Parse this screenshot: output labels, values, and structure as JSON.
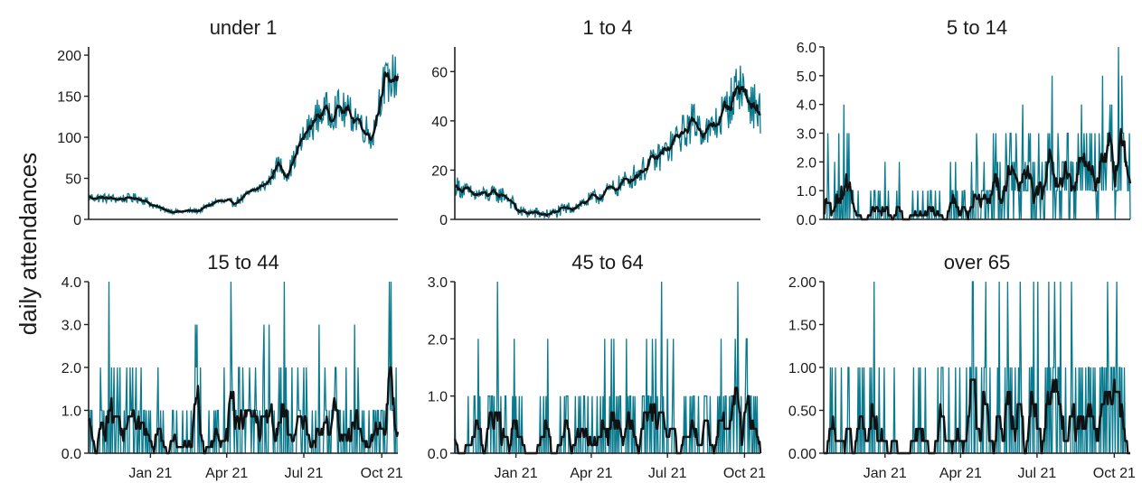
{
  "figure": {
    "ylabel": "daily attendances",
    "colors": {
      "daily": "#0a7a8f",
      "smooth": "#111111",
      "axis": "#222222"
    }
  },
  "chart_data": [
    {
      "type": "line",
      "title": "under 1",
      "x_range": [
        "2020-10-20",
        "2021-10-20"
      ],
      "ylim": [
        0,
        210
      ],
      "yticks": [
        0,
        50,
        100,
        150,
        200
      ],
      "ytick_labels": [
        "0",
        "50",
        "100",
        "150",
        "200"
      ],
      "xticks": [],
      "xtick_labels": [],
      "series": [
        {
          "values_approx": [
            [
              "2020-10-20",
              27
            ],
            [
              "2020-11-20",
              25
            ],
            [
              "2020-12-20",
              26
            ],
            [
              "2021-01-10",
              14
            ],
            [
              "2021-02-01",
              9
            ],
            [
              "2021-03-01",
              11
            ],
            [
              "2021-03-20",
              22
            ],
            [
              "2021-04-10",
              20
            ],
            [
              "2021-05-01",
              33
            ],
            [
              "2021-05-20",
              45
            ],
            [
              "2021-06-01",
              68
            ],
            [
              "2021-06-12",
              55
            ],
            [
              "2021-07-01",
              100
            ],
            [
              "2021-07-20",
              130
            ],
            [
              "2021-08-10",
              135
            ],
            [
              "2021-09-01",
              125
            ],
            [
              "2021-09-20",
              100
            ],
            [
              "2021-10-01",
              160
            ],
            [
              "2021-10-20",
              178
            ]
          ]
        }
      ]
    },
    {
      "type": "line",
      "title": "1 to 4",
      "x_range": [
        "2020-10-20",
        "2021-10-20"
      ],
      "ylim": [
        0,
        70
      ],
      "yticks": [
        0,
        20,
        40,
        60
      ],
      "ytick_labels": [
        "0",
        "20",
        "40",
        "60"
      ],
      "xticks": [],
      "xtick_labels": [],
      "series": [
        {
          "values_approx": [
            [
              "2020-10-20",
              14
            ],
            [
              "2020-11-10",
              10
            ],
            [
              "2020-12-20",
              10
            ],
            [
              "2021-01-05",
              3
            ],
            [
              "2021-02-10",
              2
            ],
            [
              "2021-03-01",
              4
            ],
            [
              "2021-04-01",
              8
            ],
            [
              "2021-05-01",
              13
            ],
            [
              "2021-06-01",
              20
            ],
            [
              "2021-07-01",
              28
            ],
            [
              "2021-08-01",
              40
            ],
            [
              "2021-08-20",
              35
            ],
            [
              "2021-09-10",
              45
            ],
            [
              "2021-09-25",
              55
            ],
            [
              "2021-10-10",
              47
            ],
            [
              "2021-10-20",
              43
            ]
          ]
        }
      ]
    },
    {
      "type": "line",
      "title": "5 to 14",
      "x_range": [
        "2020-10-20",
        "2021-10-20"
      ],
      "ylim": [
        0,
        6
      ],
      "yticks": [
        0,
        1,
        2,
        3,
        4,
        5,
        6
      ],
      "ytick_labels": [
        "0.0",
        "1.0",
        "2.0",
        "3.0",
        "4.0",
        "5.0",
        "6.0"
      ],
      "xticks": [],
      "xtick_labels": [],
      "series": [
        {
          "values_approx": [
            [
              "2020-10-20",
              0.3
            ],
            [
              "2020-12-01",
              0.7
            ],
            [
              "2021-01-15",
              0.1
            ],
            [
              "2021-03-15",
              0.3
            ],
            [
              "2021-06-01",
              1.2
            ],
            [
              "2021-07-20",
              1.5
            ],
            [
              "2021-09-20",
              2.0
            ],
            [
              "2021-10-10",
              2.3
            ],
            [
              "2021-10-20",
              1.2
            ]
          ]
        }
      ]
    },
    {
      "type": "line",
      "title": "15 to 44",
      "x_range": [
        "2020-10-20",
        "2021-10-20"
      ],
      "ylim": [
        0,
        4
      ],
      "yticks": [
        0,
        1,
        2,
        3,
        4
      ],
      "ytick_labels": [
        "0.0",
        "1.0",
        "2.0",
        "3.0",
        "4.0"
      ],
      "xticks": [
        "2021-01-01",
        "2021-04-01",
        "2021-07-01",
        "2021-10-01"
      ],
      "xtick_labels": [
        "Jan 21",
        "Apr 21",
        "Jul 21",
        "Oct 21"
      ],
      "series": [
        {
          "values_approx": [
            [
              "2020-10-20",
              0.2
            ],
            [
              "2020-11-20",
              0.8
            ],
            [
              "2021-01-15",
              0.1
            ],
            [
              "2021-04-15",
              0.8
            ],
            [
              "2021-06-01",
              0.7
            ],
            [
              "2021-08-01",
              0.5
            ],
            [
              "2021-10-01",
              0.8
            ],
            [
              "2021-10-15",
              1.5
            ],
            [
              "2021-10-20",
              0.6
            ]
          ]
        }
      ]
    },
    {
      "type": "line",
      "title": "45 to 64",
      "x_range": [
        "2020-10-20",
        "2021-10-20"
      ],
      "ylim": [
        0,
        3
      ],
      "yticks": [
        0,
        1,
        2,
        3
      ],
      "ytick_labels": [
        "0.0",
        "1.0",
        "2.0",
        "3.0"
      ],
      "xticks": [
        "2021-01-01",
        "2021-04-01",
        "2021-07-01",
        "2021-10-01"
      ],
      "xtick_labels": [
        "Jan 21",
        "Apr 21",
        "Jul 21",
        "Oct 21"
      ],
      "series": [
        {
          "values_approx": [
            [
              "2020-10-20",
              0.2
            ],
            [
              "2020-12-01",
              0.3
            ],
            [
              "2021-03-01",
              0.3
            ],
            [
              "2021-05-01",
              0.5
            ],
            [
              "2021-07-15",
              0.5
            ],
            [
              "2021-09-15",
              0.6
            ],
            [
              "2021-10-20",
              0.6
            ]
          ]
        }
      ]
    },
    {
      "type": "line",
      "title": "over 65",
      "x_range": [
        "2020-10-20",
        "2021-10-20"
      ],
      "ylim": [
        0,
        2
      ],
      "yticks": [
        0,
        0.5,
        1,
        1.5,
        2
      ],
      "ytick_labels": [
        "0.00",
        "0.50",
        "1.00",
        "1.50",
        "2.00"
      ],
      "xticks": [
        "2021-01-01",
        "2021-04-01",
        "2021-07-01",
        "2021-10-01"
      ],
      "xtick_labels": [
        "Jan 21",
        "Apr 21",
        "Jul 21",
        "Oct 21"
      ],
      "series": [
        {
          "values_approx": [
            [
              "2020-10-20",
              0.0
            ],
            [
              "2020-12-01",
              0.4
            ],
            [
              "2021-01-15",
              0.1
            ],
            [
              "2021-04-01",
              0.3
            ],
            [
              "2021-06-01",
              0.4
            ],
            [
              "2021-07-20",
              0.6
            ],
            [
              "2021-08-10",
              0.7
            ],
            [
              "2021-09-01",
              0.4
            ],
            [
              "2021-10-10",
              0.7
            ],
            [
              "2021-10-20",
              0.0
            ]
          ]
        }
      ]
    }
  ]
}
